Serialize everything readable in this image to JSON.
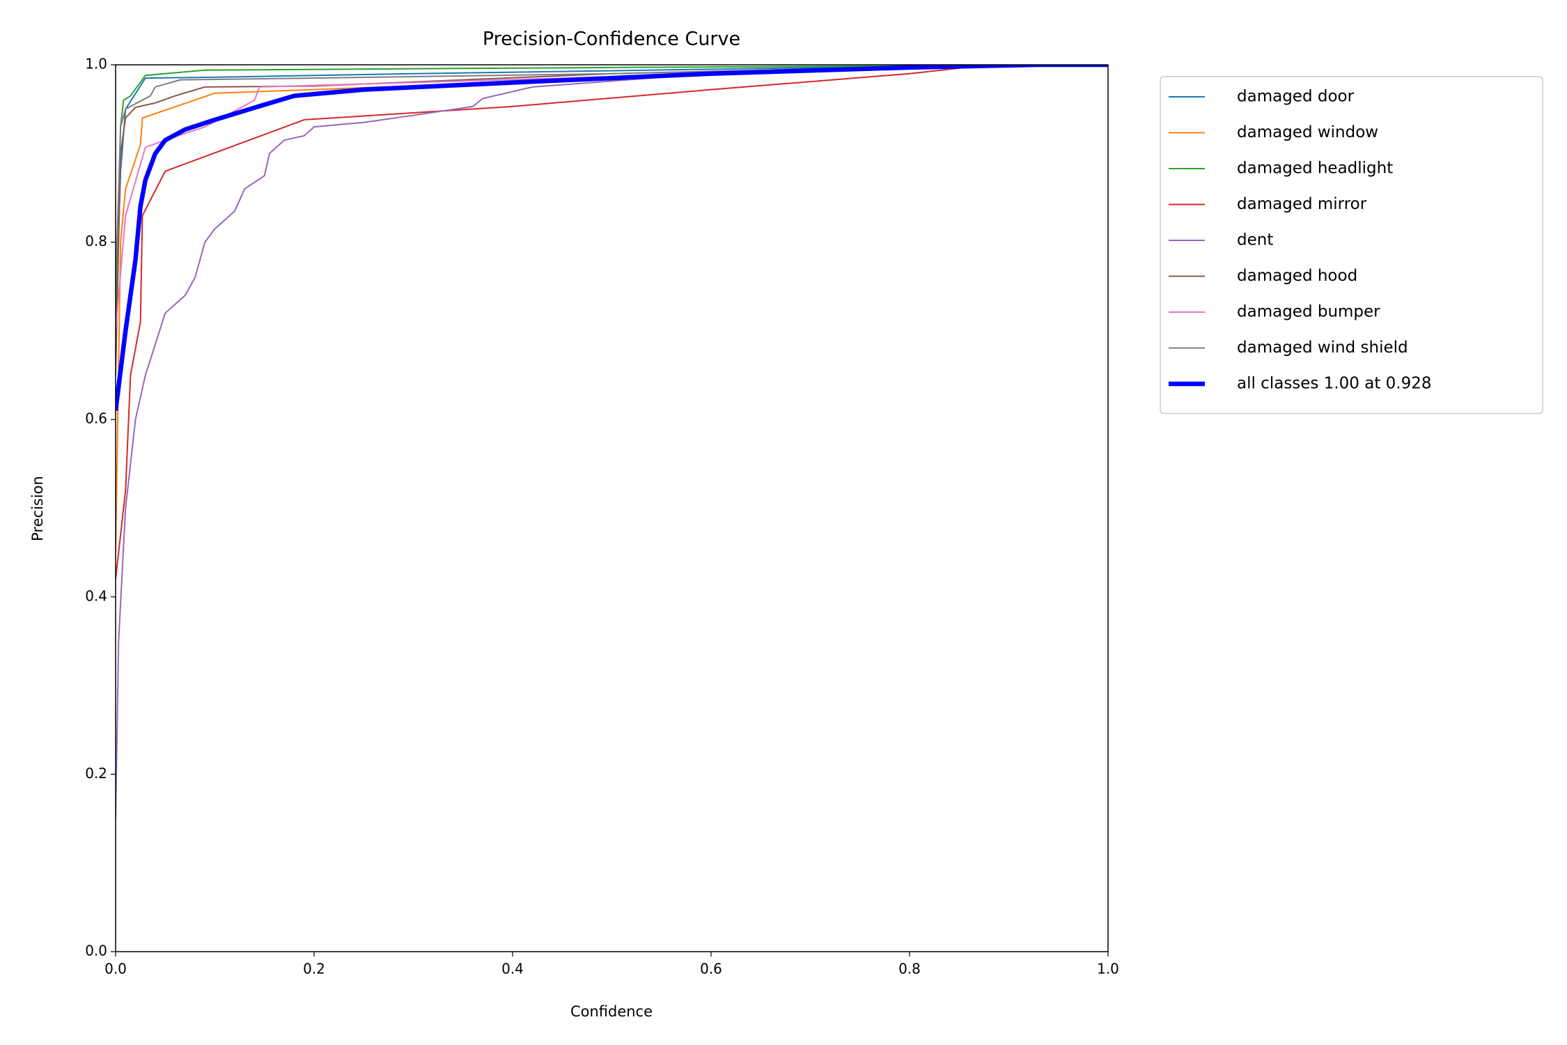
{
  "chart_data": {
    "type": "line",
    "title": "Precision-Confidence Curve",
    "x_label": "Confidence",
    "y_label": "Precision",
    "xlim": [
      0,
      1
    ],
    "ylim": [
      0,
      1
    ],
    "xticks": [
      {
        "value": 0,
        "label": "0.0"
      },
      0.2,
      0.4,
      0.6,
      0.8,
      {
        "value": 1,
        "label": "1.0"
      }
    ],
    "yticks": [
      {
        "value": 0,
        "label": "0.0"
      },
      0.2,
      0.4,
      0.6,
      0.8,
      {
        "value": 1,
        "label": "1.0"
      }
    ],
    "legend": "outside-upper-right",
    "series": [
      {
        "name": "damaged door",
        "color": "#1f77b4",
        "linewidth": 2,
        "x": [
          0,
          0.005,
          0.01,
          0.03,
          0.1,
          0.3,
          0.6,
          0.88,
          1
        ],
        "values": [
          0.7,
          0.88,
          0.95,
          0.985,
          0.986,
          0.99,
          0.995,
          1,
          1
        ]
      },
      {
        "name": "damaged window",
        "color": "#ff7f0e",
        "linewidth": 2,
        "x": [
          0,
          0.005,
          0.01,
          0.025,
          0.027,
          0.1,
          0.2,
          0.5,
          0.88,
          1
        ],
        "values": [
          0.45,
          0.8,
          0.86,
          0.91,
          0.94,
          0.968,
          0.972,
          0.985,
          1,
          1
        ]
      },
      {
        "name": "damaged headlight",
        "color": "#2ca02c",
        "linewidth": 2,
        "x": [
          0,
          0.005,
          0.008,
          0.015,
          0.03,
          0.09,
          0.5,
          1
        ],
        "values": [
          0.7,
          0.93,
          0.96,
          0.965,
          0.988,
          0.994,
          0.997,
          1
        ]
      },
      {
        "name": "damaged mirror",
        "color": "#d62728",
        "linewidth": 2,
        "x": [
          0,
          0.01,
          0.015,
          0.025,
          0.027,
          0.05,
          0.19,
          0.4,
          0.6,
          0.8,
          0.88,
          1
        ],
        "values": [
          0.42,
          0.52,
          0.65,
          0.71,
          0.83,
          0.88,
          0.938,
          0.953,
          0.972,
          0.99,
          1,
          1
        ]
      },
      {
        "name": "dent",
        "color": "#9467bd",
        "linewidth": 2,
        "x": [
          0,
          0.003,
          0.01,
          0.015,
          0.02,
          0.03,
          0.05,
          0.07,
          0.08,
          0.09,
          0.1,
          0.12,
          0.13,
          0.15,
          0.155,
          0.17,
          0.19,
          0.2,
          0.25,
          0.3,
          0.36,
          0.37,
          0.42,
          0.6,
          0.85,
          1
        ],
        "values": [
          0.15,
          0.35,
          0.5,
          0.55,
          0.6,
          0.65,
          0.72,
          0.74,
          0.76,
          0.8,
          0.815,
          0.835,
          0.86,
          0.875,
          0.9,
          0.915,
          0.92,
          0.93,
          0.935,
          0.943,
          0.953,
          0.962,
          0.975,
          0.99,
          1,
          1
        ]
      },
      {
        "name": "damaged hood",
        "color": "#8c564b",
        "linewidth": 2,
        "x": [
          0,
          0.005,
          0.01,
          0.02,
          0.04,
          0.06,
          0.09,
          0.2,
          0.5,
          0.88,
          1
        ],
        "values": [
          0.65,
          0.9,
          0.94,
          0.952,
          0.957,
          0.965,
          0.975,
          0.976,
          0.99,
          1,
          1
        ]
      },
      {
        "name": "damaged bumper",
        "color": "#e377c2",
        "linewidth": 2,
        "x": [
          0,
          0.01,
          0.03,
          0.05,
          0.09,
          0.14,
          0.145,
          0.3,
          0.6,
          0.88,
          1
        ],
        "values": [
          0.7,
          0.83,
          0.907,
          0.915,
          0.93,
          0.96,
          0.975,
          0.98,
          0.99,
          1,
          1
        ]
      },
      {
        "name": "damaged wind shield",
        "color": "#7f7f7f",
        "linewidth": 2,
        "x": [
          0,
          0.005,
          0.01,
          0.035,
          0.04,
          0.065,
          0.2,
          0.5,
          0.88,
          1
        ],
        "values": [
          0.75,
          0.93,
          0.95,
          0.965,
          0.975,
          0.983,
          0.985,
          0.99,
          1,
          1
        ]
      },
      {
        "name": "all classes 1.00 at 0.928",
        "color": "#0000ff",
        "linewidth": 6.5,
        "x": [
          0,
          0.01,
          0.02,
          0.025,
          0.03,
          0.04,
          0.05,
          0.07,
          0.1,
          0.15,
          0.18,
          0.25,
          0.4,
          0.6,
          0.8,
          0.928,
          1
        ],
        "values": [
          0.61,
          0.7,
          0.78,
          0.84,
          0.87,
          0.9,
          0.915,
          0.927,
          0.938,
          0.955,
          0.965,
          0.972,
          0.98,
          0.99,
          0.997,
          1,
          1
        ]
      }
    ]
  }
}
